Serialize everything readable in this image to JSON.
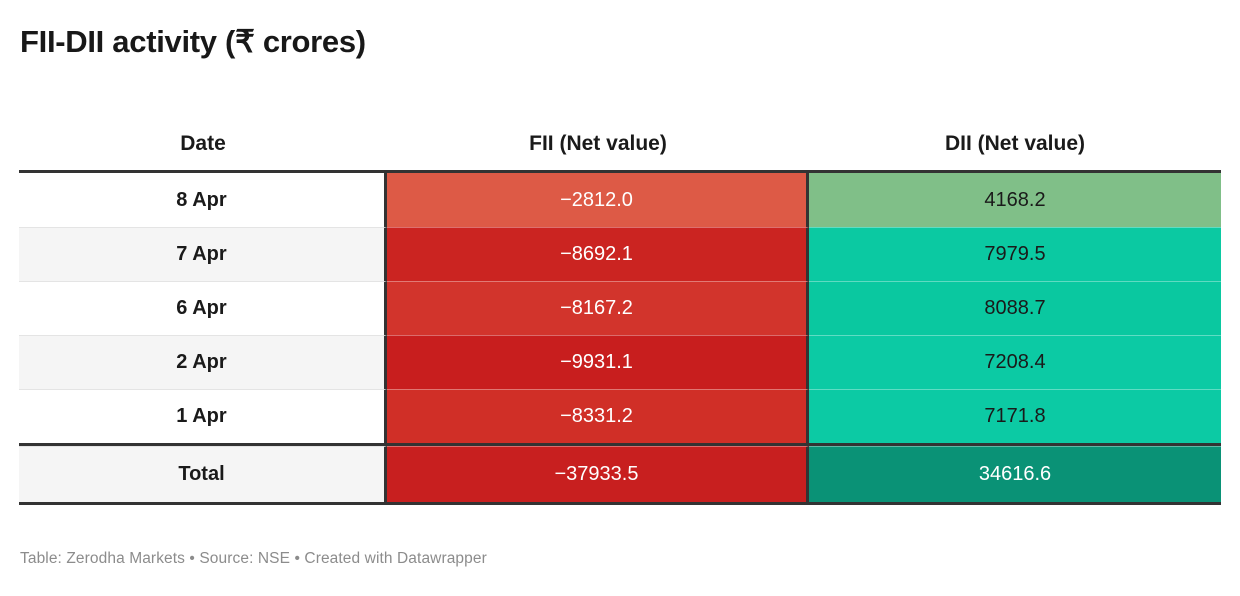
{
  "title": "FII-DII activity (₹ crores)",
  "footer": "Table: Zerodha Markets • Source: NSE • Created with Datawrapper",
  "table": {
    "columns": [
      {
        "label": "Date"
      },
      {
        "label": "FII (Net value)"
      },
      {
        "label": "DII (Net value)"
      }
    ],
    "rows": [
      {
        "date": "8 Apr",
        "fii": "−2812.0",
        "dii": "4168.2",
        "date_bg": "#ffffff",
        "fii_bg": "#dd5a46",
        "dii_bg": "#80bf88",
        "fii_text": "#ffffff",
        "dii_text": "#1a1a1a"
      },
      {
        "date": "7 Apr",
        "fii": "−8692.1",
        "dii": "7979.5",
        "date_bg": "#f5f5f5",
        "fii_bg": "#cb2421",
        "dii_bg": "#0bc9a2",
        "fii_text": "#ffffff",
        "dii_text": "#1a1a1a"
      },
      {
        "date": "6 Apr",
        "fii": "−8167.2",
        "dii": "8088.7",
        "date_bg": "#ffffff",
        "fii_bg": "#d2342c",
        "dii_bg": "#0ac8a0",
        "fii_text": "#ffffff",
        "dii_text": "#1a1a1a"
      },
      {
        "date": "2 Apr",
        "fii": "−9931.1",
        "dii": "7208.4",
        "date_bg": "#f5f5f5",
        "fii_bg": "#c81e1e",
        "dii_bg": "#0ccaa4",
        "fii_text": "#ffffff",
        "dii_text": "#1a1a1a"
      },
      {
        "date": "1 Apr",
        "fii": "−8331.2",
        "dii": "7171.8",
        "date_bg": "#ffffff",
        "fii_bg": "#d02f27",
        "dii_bg": "#0ccaa4",
        "fii_text": "#ffffff",
        "dii_text": "#1a1a1a"
      }
    ],
    "total_row": {
      "date": "Total",
      "fii": "−37933.5",
      "dii": "34616.6",
      "date_bg": "#f5f5f5",
      "fii_bg": "#c81f1f",
      "dii_bg": "#0a9276",
      "fii_text": "#ffffff",
      "dii_text": "#ffffff"
    }
  },
  "colors": {
    "border_dark": "#333333",
    "row_alt": "#f5f5f5",
    "title_text": "#181818",
    "footer_text": "#8c8c8c"
  },
  "chart_data": {
    "type": "table",
    "title": "FII-DII activity (₹ crores)",
    "value_unit": "₹ crores",
    "columns": [
      "Date",
      "FII (Net value)",
      "DII (Net value)"
    ],
    "rows": [
      [
        "8 Apr",
        -2812.0,
        4168.2
      ],
      [
        "7 Apr",
        -8692.1,
        7979.5
      ],
      [
        "6 Apr",
        -8167.2,
        8088.7
      ],
      [
        "2 Apr",
        -9931.1,
        7208.4
      ],
      [
        "1 Apr",
        -8331.2,
        7171.8
      ],
      [
        "Total",
        -37933.5,
        34616.6
      ]
    ],
    "notes": "FII negative values shaded on a red scale (lighter = closer to zero); DII positive values shaded on a green/teal scale; Total row uses darker saturated shades",
    "source": "Table: Zerodha Markets • Source: NSE • Created with Datawrapper"
  }
}
